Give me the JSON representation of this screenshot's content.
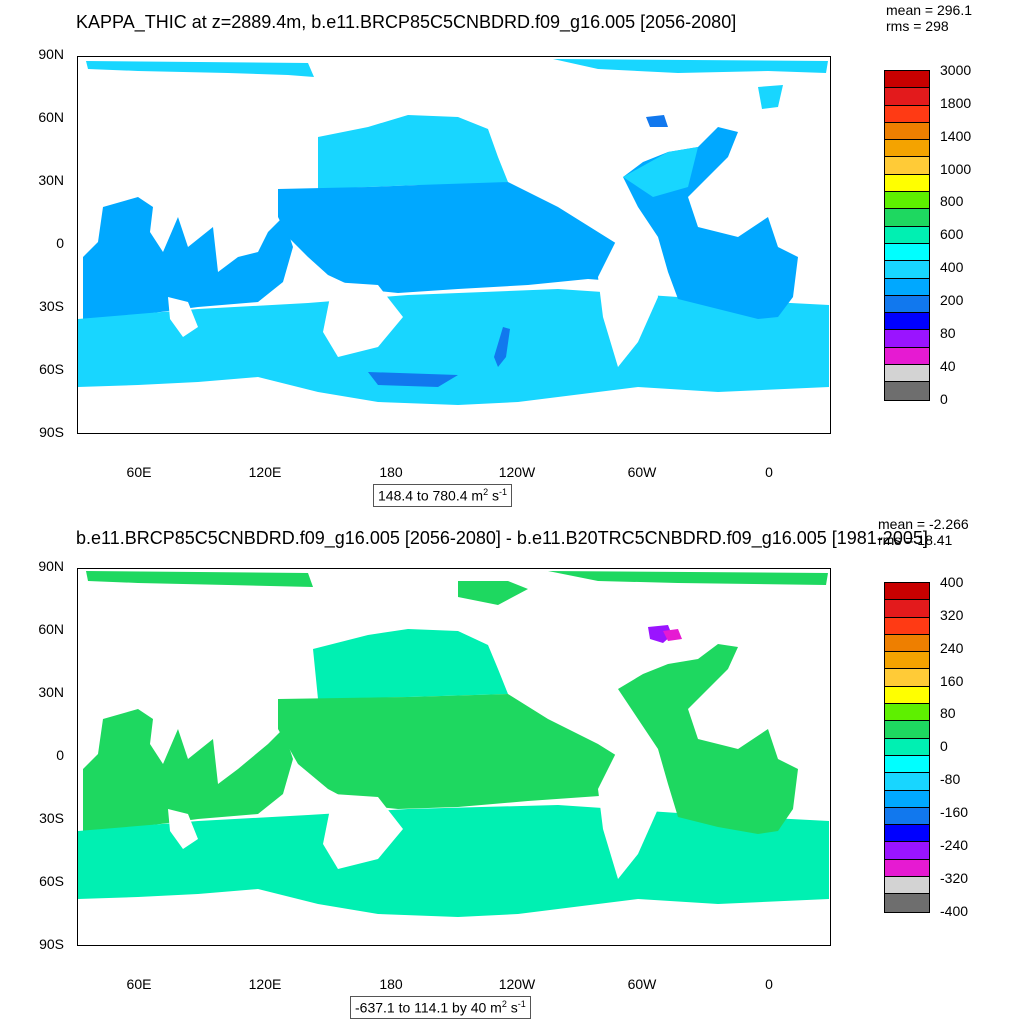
{
  "top": {
    "title": "KAPPA_THIC at z=2889.4m, b.e11.BRCP85C5CNBDRD.f09_g16.005 [2056-2080]",
    "stats": {
      "mean": "mean = 296.1",
      "rms": "rms = 298"
    },
    "range": {
      "text": "148.4 to 780.4 m",
      "sup1": "2",
      "mid": " s",
      "sup2": "-1"
    },
    "colorbar": {
      "labels": [
        "3000",
        "1800",
        "1400",
        "1000",
        "800",
        "600",
        "400",
        "200",
        "80",
        "40",
        "0"
      ],
      "colors": [
        "#c80000",
        "#e31a1c",
        "#ff3a14",
        "#ee7f00",
        "#f4a300",
        "#ffcb37",
        "#ffff00",
        "#5ef000",
        "#1ed860",
        "#00f0b2",
        "#00ffff",
        "#18d6ff",
        "#00a8ff",
        "#1178ee",
        "#0000ff",
        "#9a14ff",
        "#e61ad2",
        "#d3d3d3",
        "#6e6e6e"
      ]
    }
  },
  "bottom": {
    "title": "b.e11.BRCP85C5CNBDRD.f09_g16.005 [2056-2080] - b.e11.B20TRC5CNBDRD.f09_g16.005 [1981-2005]",
    "stats": {
      "mean": "mean = -2.266",
      "rms": "rms = 18.41"
    },
    "range": {
      "text": "-637.1 to 114.1 by 40 m",
      "sup1": "2",
      "mid": " s",
      "sup2": "-1"
    },
    "colorbar": {
      "labels": [
        "400",
        "320",
        "240",
        "160",
        "80",
        "0",
        "-80",
        "-160",
        "-240",
        "-320",
        "-400"
      ],
      "colors": [
        "#c80000",
        "#e31a1c",
        "#ff3a14",
        "#ee7f00",
        "#f4a300",
        "#ffcb37",
        "#ffff00",
        "#5ef000",
        "#1ed860",
        "#00f0b2",
        "#00ffff",
        "#18d6ff",
        "#00a8ff",
        "#1178ee",
        "#0000ff",
        "#9a14ff",
        "#e61ad2",
        "#d3d3d3",
        "#6e6e6e"
      ]
    }
  },
  "axes": {
    "lat_labels": [
      "90N",
      "60N",
      "30N",
      "0",
      "30S",
      "60S",
      "90S"
    ],
    "lon_labels": [
      "60E",
      "120E",
      "180",
      "120W",
      "60W",
      "0"
    ]
  },
  "colors": {
    "top_main": "#18d6ff",
    "top_band": "#00a8ff",
    "top_deep": "#1178ee",
    "bot_green": "#1ed860",
    "bot_light": "#5ef000",
    "bot_cyan": "#00f0b2",
    "bot_sky": "#00ffff"
  }
}
